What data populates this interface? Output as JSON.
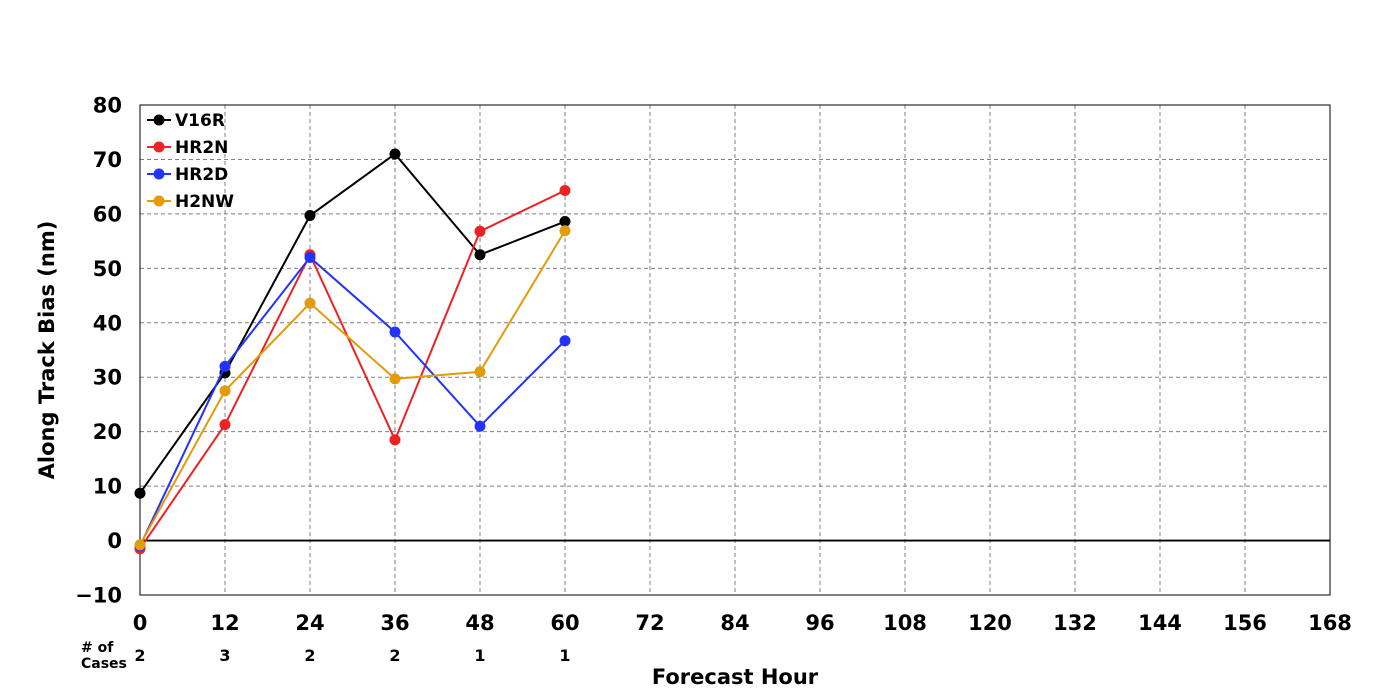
{
  "chart_data": {
    "type": "line",
    "title": "",
    "xlabel": "Forecast Hour",
    "ylabel": "Along Track Bias (nm)",
    "xlim": [
      0,
      168
    ],
    "ylim": [
      -10,
      80
    ],
    "x_ticks": [
      0,
      12,
      24,
      36,
      48,
      60,
      72,
      84,
      96,
      108,
      120,
      132,
      144,
      156,
      168
    ],
    "y_ticks": [
      -10,
      0,
      10,
      20,
      30,
      40,
      50,
      60,
      70,
      80
    ],
    "x_tick_labels": [
      "0",
      "12",
      "24",
      "36",
      "48",
      "60",
      "72",
      "84",
      "96",
      "108",
      "120",
      "132",
      "144",
      "156",
      "168"
    ],
    "y_tick_labels": [
      "−10",
      "0",
      "10",
      "20",
      "30",
      "40",
      "50",
      "60",
      "70",
      "80"
    ],
    "grid": true,
    "legend_position": "top-left",
    "x": [
      0,
      12,
      24,
      36,
      48,
      60
    ],
    "series": [
      {
        "name": "V16R",
        "color": "#000000",
        "values": [
          8.7,
          30.8,
          59.7,
          71.0,
          52.5,
          58.6
        ]
      },
      {
        "name": "HR2N",
        "color": "#ee2222",
        "values": [
          -1.5,
          21.3,
          52.5,
          18.5,
          56.8,
          64.3
        ]
      },
      {
        "name": "HR2D",
        "color": "#2233ff",
        "values": [
          -1.0,
          32.0,
          52.0,
          38.3,
          21.0,
          36.7
        ]
      },
      {
        "name": "H2NW",
        "color": "#e39b07",
        "values": [
          -0.8,
          27.5,
          43.6,
          29.7,
          31.0,
          56.9
        ]
      }
    ],
    "cases": {
      "label_line1": "# of",
      "label_line2": "Cases",
      "x": [
        0,
        12,
        24,
        36,
        48,
        60
      ],
      "counts": [
        "2",
        "3",
        "2",
        "2",
        "1",
        "1"
      ]
    }
  }
}
